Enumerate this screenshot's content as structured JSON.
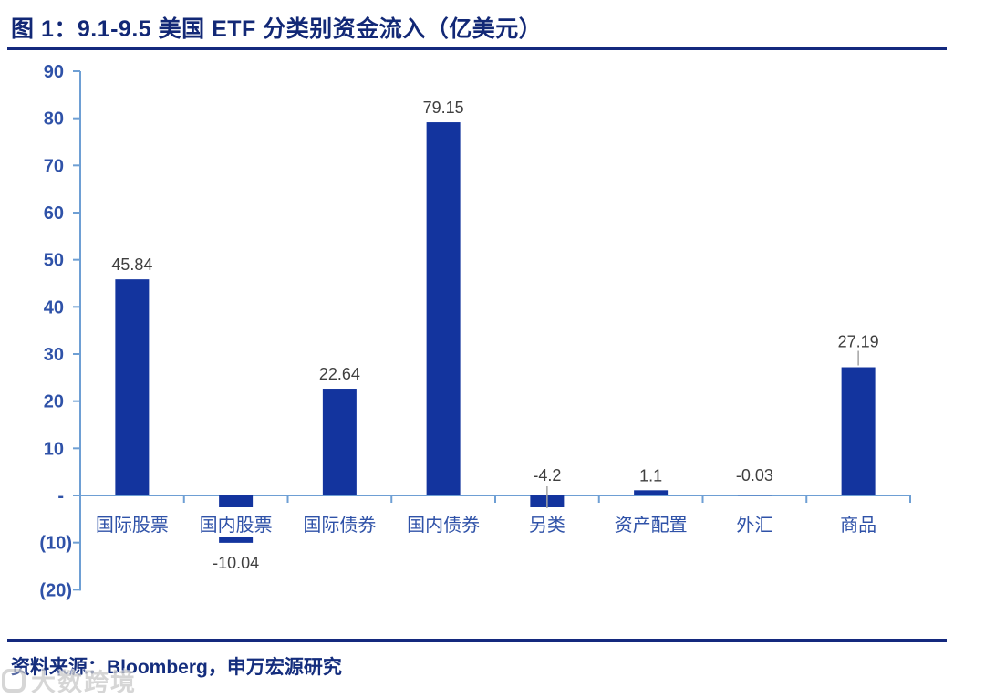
{
  "title": "图 1：9.1-9.5 美国 ETF 分类别资金流入（亿美元）",
  "source": "资料来源：Bloomberg，申万宏源研究",
  "watermark": {
    "text": "大数跨境"
  },
  "colors": {
    "bar": "#13349E",
    "axis": "#6E9FD4",
    "tick_label": "#2F52A8",
    "category_label": "#2F52A8",
    "value_label": "#3F3F3F",
    "leader": "#A3A3A3",
    "title": "#122876",
    "rule": "#14297E",
    "source_text": "#142D7D",
    "watermark": "#C9C9C9"
  },
  "chart_data": {
    "type": "bar",
    "title": "9.1-9.5 美国 ETF 分类别资金流入（亿美元）",
    "unit": "亿美元",
    "categories": [
      "国际股票",
      "国内股票",
      "国际债券",
      "国内债券",
      "另类",
      "资产配置",
      "外汇",
      "商品"
    ],
    "values": [
      45.84,
      -10.04,
      22.64,
      79.15,
      -4.2,
      1.1,
      -0.03,
      27.19
    ],
    "value_labels": [
      "45.84",
      "-10.04",
      "22.64",
      "79.15",
      "-4.2",
      "1.1",
      "-0.03",
      "27.19"
    ],
    "label_placements": [
      "above",
      "below",
      "above",
      "above",
      "above-axis-leader",
      "above",
      "above-axis",
      "above-leader"
    ],
    "ylim": [
      -20,
      90
    ],
    "y_ticks": [
      {
        "label": "90",
        "value": 90
      },
      {
        "label": "80",
        "value": 80
      },
      {
        "label": "70",
        "value": 70
      },
      {
        "label": "60",
        "value": 60
      },
      {
        "label": "50",
        "value": 50
      },
      {
        "label": "40",
        "value": 40
      },
      {
        "label": "30",
        "value": 30
      },
      {
        "label": "20",
        "value": 20
      },
      {
        "label": "10",
        "value": 10
      },
      {
        "label": "-",
        "value": 0
      },
      {
        "label": "(10)",
        "value": -10
      },
      {
        "label": "(20)",
        "value": -20
      }
    ],
    "grid": false,
    "legend": "none"
  }
}
